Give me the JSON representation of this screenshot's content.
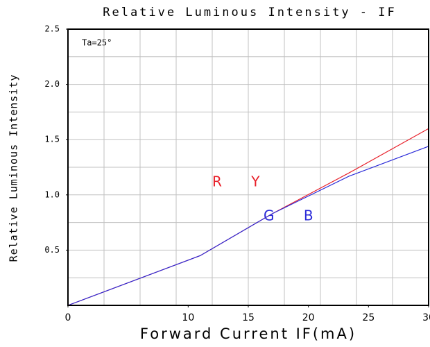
{
  "chart_data": {
    "type": "line",
    "title": "Relative Luminous Intensity - IF",
    "xlabel": "Forward Current IF(mA)",
    "ylabel": "Relative Luminous Intensity",
    "annotations": [
      "Ta=25°",
      "R Y",
      "G B"
    ],
    "x": [
      0,
      11,
      17,
      23.4,
      30
    ],
    "series": [
      {
        "name": "R Y",
        "color": "#e8202a",
        "values": [
          0,
          0.45,
          0.83,
          1.2,
          1.6
        ]
      },
      {
        "name": "G B",
        "color": "#2a2ad8",
        "values": [
          0,
          0.45,
          0.83,
          1.17,
          1.44
        ]
      }
    ],
    "xlim": [
      0,
      30
    ],
    "xticks": [
      0,
      10,
      15,
      20,
      25,
      30
    ],
    "xgrid": [
      3,
      6,
      9,
      12,
      15,
      18,
      21,
      24,
      27
    ],
    "ylim": [
      0,
      2.5
    ],
    "yticks": [
      0.5,
      {
        "value": 1,
        "label": "1.0"
      },
      1.5,
      {
        "value": 2,
        "label": "2.0"
      },
      2.5
    ],
    "ygrid": [
      0.25,
      0.5,
      0.75,
      1,
      1.25,
      1.5,
      1.75,
      2,
      2.25
    ],
    "grid": true
  }
}
